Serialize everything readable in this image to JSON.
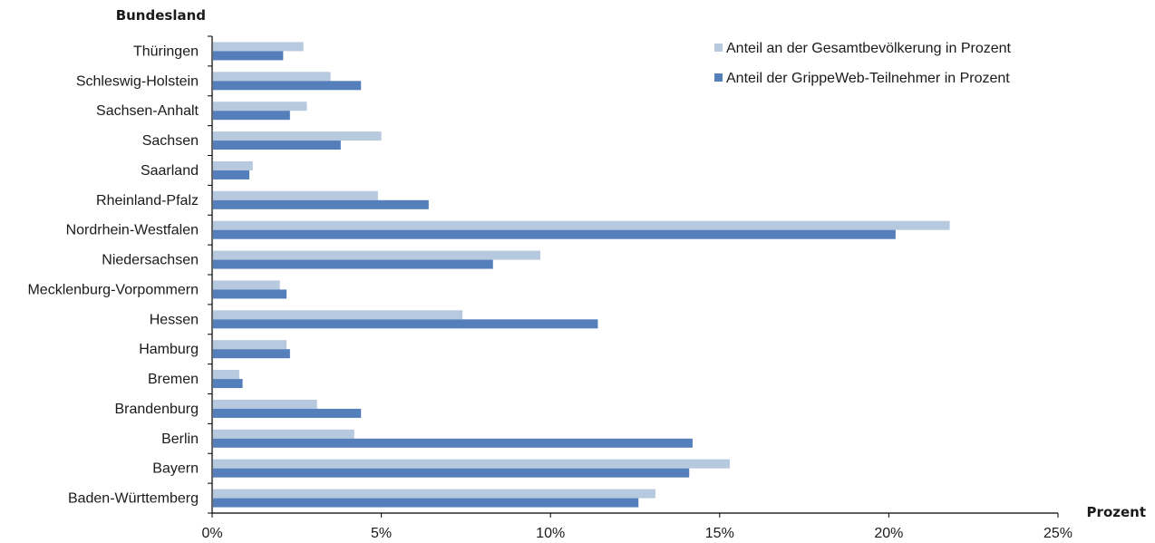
{
  "chart_data": {
    "type": "bar",
    "orientation": "horizontal",
    "ylabel": "Bundesland",
    "xlabel": "Prozent",
    "xlim": [
      0,
      25
    ],
    "xticks": [
      "0%",
      "5%",
      "10%",
      "15%",
      "20%",
      "25%"
    ],
    "grid": false,
    "legend_position": "top-right",
    "categories": [
      "Thüringen",
      "Schleswig-Holstein",
      "Sachsen-Anhalt",
      "Sachsen",
      "Saarland",
      "Rheinland-Pfalz",
      "Nordrhein-Westfalen",
      "Niedersachsen",
      "Mecklenburg-Vorpommern",
      "Hessen",
      "Hamburg",
      "Bremen",
      "Brandenburg",
      "Berlin",
      "Bayern",
      "Baden-Württemberg"
    ],
    "series": [
      {
        "name": "Anteil an der Gesamtbevölkerung in Prozent",
        "color": "#b7c9df",
        "values": [
          2.7,
          3.5,
          2.8,
          5.0,
          1.2,
          4.9,
          21.8,
          9.7,
          2.0,
          7.4,
          2.2,
          0.8,
          3.1,
          4.2,
          15.3,
          13.1
        ]
      },
      {
        "name": "Anteil der GrippeWeb-Teilnehmer in Prozent",
        "color": "#557fba",
        "values": [
          2.1,
          4.4,
          2.3,
          3.8,
          1.1,
          6.4,
          20.2,
          8.3,
          2.2,
          11.4,
          2.3,
          0.9,
          4.4,
          14.2,
          14.1,
          12.6
        ]
      }
    ]
  }
}
